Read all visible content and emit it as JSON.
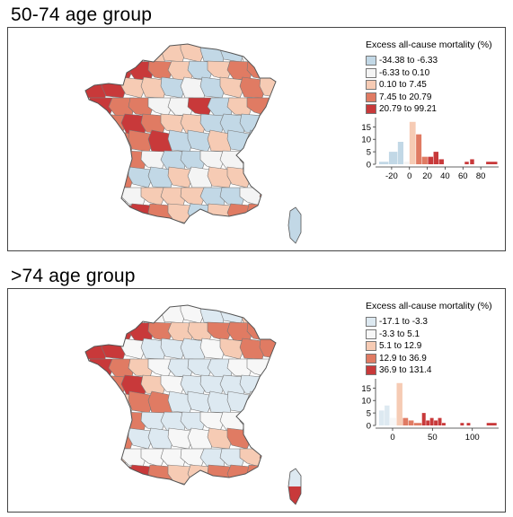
{
  "panels": [
    {
      "title": "50-74 age group",
      "legend": {
        "title": "Excess all-cause mortality (%)",
        "items": [
          {
            "label": "-34.38 to -6.33",
            "color": "#c2d8e6"
          },
          {
            "label": "-6.33 to 0.10",
            "color": "#f4f4f4"
          },
          {
            "label": "0.10 to 7.45",
            "color": "#f6cbb4"
          },
          {
            "label": "7.45 to 20.79",
            "color": "#e07b63"
          },
          {
            "label": "20.79 to 99.21",
            "color": "#c8393a"
          }
        ]
      },
      "chart_data": {
        "type": "bar",
        "xlim": [
          -35,
          100
        ],
        "ylim": [
          0,
          18
        ],
        "yticks": [
          0,
          5,
          10,
          15
        ],
        "xticks": [
          -20,
          0,
          20,
          40,
          60,
          80
        ],
        "bars": [
          {
            "x0": -34,
            "x1": -23,
            "y": 1,
            "c": 0
          },
          {
            "x0": -23,
            "x1": -13,
            "y": 5,
            "c": 0
          },
          {
            "x0": -13,
            "x1": -6.3,
            "y": 9,
            "c": 0
          },
          {
            "x0": -6.3,
            "x1": 0.1,
            "y": 1,
            "c": 1
          },
          {
            "x0": 0.1,
            "x1": 7.45,
            "y": 17,
            "c": 2
          },
          {
            "x0": 7.45,
            "x1": 14,
            "y": 12,
            "c": 3
          },
          {
            "x0": 14,
            "x1": 20.79,
            "y": 3,
            "c": 3
          },
          {
            "x0": 20.79,
            "x1": 27,
            "y": 3,
            "c": 4
          },
          {
            "x0": 27,
            "x1": 33,
            "y": 5,
            "c": 4
          },
          {
            "x0": 33,
            "x1": 39,
            "y": 2,
            "c": 4
          },
          {
            "x0": 62,
            "x1": 67,
            "y": 1,
            "c": 4
          },
          {
            "x0": 68,
            "x1": 73,
            "y": 2,
            "c": 4
          },
          {
            "x0": 86,
            "x1": 99,
            "y": 1,
            "c": 4
          }
        ]
      }
    },
    {
      "title": ">74 age group",
      "legend": {
        "title": "Excess all-cause mortality (%)",
        "items": [
          {
            "label": "-17.1 to -3.3",
            "color": "#dde9f1"
          },
          {
            "label": "-3.3 to 5.1",
            "color": "#f7f7f7"
          },
          {
            "label": "5.1 to 12.9",
            "color": "#f6cbb4"
          },
          {
            "label": "12.9 to 36.9",
            "color": "#e07b63"
          },
          {
            "label": "36.9 to 131.4",
            "color": "#c8393a"
          }
        ]
      },
      "chart_data": {
        "type": "bar",
        "xlim": [
          -18,
          133
        ],
        "ylim": [
          0,
          18
        ],
        "yticks": [
          0,
          5,
          10,
          15
        ],
        "xticks": [
          0,
          50,
          100
        ],
        "bars": [
          {
            "x0": -17,
            "x1": -10,
            "y": 6,
            "c": 0
          },
          {
            "x0": -10,
            "x1": -3.3,
            "y": 8,
            "c": 0
          },
          {
            "x0": -3.3,
            "x1": 5.1,
            "y": 3,
            "c": 1
          },
          {
            "x0": 5.1,
            "x1": 12.9,
            "y": 17,
            "c": 2
          },
          {
            "x0": 12.9,
            "x1": 20,
            "y": 3,
            "c": 3
          },
          {
            "x0": 20,
            "x1": 27,
            "y": 2,
            "c": 3
          },
          {
            "x0": 27,
            "x1": 36.9,
            "y": 1,
            "c": 3
          },
          {
            "x0": 36.9,
            "x1": 42,
            "y": 5,
            "c": 4
          },
          {
            "x0": 42,
            "x1": 47,
            "y": 2,
            "c": 4
          },
          {
            "x0": 47,
            "x1": 52,
            "y": 3,
            "c": 4
          },
          {
            "x0": 52,
            "x1": 57,
            "y": 2,
            "c": 4
          },
          {
            "x0": 57,
            "x1": 62,
            "y": 3,
            "c": 4
          },
          {
            "x0": 62,
            "x1": 67,
            "y": 1,
            "c": 4
          },
          {
            "x0": 85,
            "x1": 90,
            "y": 1,
            "c": 4
          },
          {
            "x0": 93,
            "x1": 98,
            "y": 1,
            "c": 4
          },
          {
            "x0": 118,
            "x1": 131,
            "y": 1,
            "c": 4
          }
        ]
      },
      "map_levels": [
        2,
        2,
        1,
        1,
        1,
        1,
        0,
        0,
        2,
        3,
        3,
        4,
        4,
        3,
        2,
        2,
        3,
        3,
        3,
        4,
        4,
        4,
        1,
        0,
        0,
        0,
        1,
        2,
        3,
        3,
        4,
        3,
        2,
        1,
        0,
        0,
        0,
        1,
        1,
        2,
        3,
        3,
        4,
        2,
        1,
        0,
        0,
        0,
        0,
        1,
        2,
        2,
        3,
        3,
        0,
        0,
        0,
        0,
        1,
        1,
        2,
        2,
        3,
        0,
        0,
        0,
        1,
        1,
        1,
        2,
        2,
        3,
        0,
        0,
        1,
        1,
        2,
        3,
        3,
        4
      ]
    }
  ],
  "map_levels_top": [
    2,
    1,
    1,
    2,
    2,
    2,
    0,
    0,
    1,
    3,
    3,
    4,
    4,
    3,
    2,
    0,
    2,
    3,
    3,
    3,
    4,
    4,
    2,
    2,
    0,
    1,
    0,
    2,
    3,
    2,
    4,
    3,
    3,
    1,
    1,
    4,
    0,
    2,
    3,
    0,
    1,
    3,
    4,
    3,
    2,
    2,
    0,
    0,
    0,
    1,
    2,
    3,
    3,
    4,
    0,
    0,
    2,
    0,
    0,
    1,
    2,
    2,
    3,
    1,
    0,
    0,
    1,
    1,
    2,
    3,
    4,
    3,
    0,
    0,
    2,
    1,
    2,
    2,
    4,
    3
  ]
}
